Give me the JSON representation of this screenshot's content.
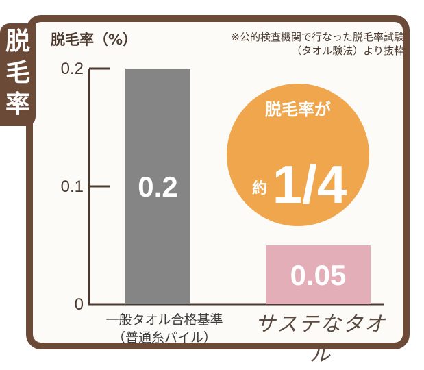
{
  "side_title": [
    "脱",
    "毛",
    "率"
  ],
  "title": "脱毛率（%）",
  "note": [
    "※公的検査機関で行なった脱毛率試験",
    "（タオル験法）より抜粋"
  ],
  "badge": {
    "top": "脱毛率が",
    "prefix": "約",
    "fraction": "1/4"
  },
  "colors": {
    "frame": "#6b4a38",
    "bar_standard": "#858585",
    "bar_product": "#e3aeb8",
    "badge": "#f0a64c"
  },
  "chart_data": {
    "type": "bar",
    "title": "脱毛率（%）",
    "categories": [
      "一般タオル合格基準（普通糸パイル）",
      "サステなタオル"
    ],
    "category_lines": [
      [
        "一般タオル合格基準",
        "（普通糸パイル）"
      ],
      [
        "サステなタオル"
      ]
    ],
    "values": [
      0.2,
      0.05
    ],
    "value_labels": [
      "0.2",
      "0.05"
    ],
    "yticks": [
      0,
      0.1,
      0.2
    ],
    "ytick_labels": [
      "0",
      "0.1",
      "0.2"
    ],
    "ylim": [
      0,
      0.2
    ],
    "grid": false
  }
}
